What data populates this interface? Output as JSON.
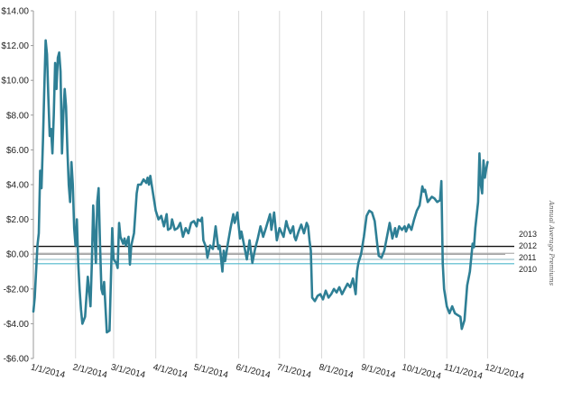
{
  "chart_data": {
    "type": "line",
    "title": "",
    "xlabel": "",
    "ylabel": "",
    "ylim": [
      -6,
      14
    ],
    "yticks": [
      14,
      12,
      10,
      8,
      6,
      4,
      2,
      0,
      -2,
      -4,
      -6
    ],
    "ytick_labels": [
      "$14.00",
      "$12.00",
      "$10.00",
      "$8.00",
      "$6.00",
      "$4.00",
      "$2.00",
      "$0.00",
      "-$2.00",
      "-$4.00",
      "-$6.00"
    ],
    "x_tick_labels": [
      "1/1/2014",
      "2/1/2014",
      "3/1/2014",
      "4/1/2014",
      "5/1/2014",
      "6/1/2014",
      "7/1/2014",
      "8/1/2014",
      "9/1/2014",
      "10/1/2014",
      "11/1/2014",
      "12/1/2014"
    ],
    "grid": "vertical",
    "series": [
      {
        "name": "",
        "color": "#2e7f95",
        "points": [
          [
            "2014-01-01",
            -3.3
          ],
          [
            "2014-01-02",
            -2.5
          ],
          [
            "2014-01-04",
            0.5
          ],
          [
            "2014-01-05",
            1.2
          ],
          [
            "2014-01-06",
            4.8
          ],
          [
            "2014-01-07",
            3.8
          ],
          [
            "2014-01-08",
            6.5
          ],
          [
            "2014-01-09",
            9.5
          ],
          [
            "2014-01-10",
            12.3
          ],
          [
            "2014-01-11",
            11.5
          ],
          [
            "2014-01-12",
            9.0
          ],
          [
            "2014-01-13",
            6.8
          ],
          [
            "2014-01-14",
            7.2
          ],
          [
            "2014-01-15",
            5.8
          ],
          [
            "2014-01-16",
            8.0
          ],
          [
            "2014-01-17",
            11.0
          ],
          [
            "2014-01-18",
            9.5
          ],
          [
            "2014-01-19",
            11.3
          ],
          [
            "2014-01-20",
            11.6
          ],
          [
            "2014-01-21",
            10.5
          ],
          [
            "2014-01-22",
            5.8
          ],
          [
            "2014-01-23",
            8.0
          ],
          [
            "2014-01-24",
            9.5
          ],
          [
            "2014-01-25",
            8.5
          ],
          [
            "2014-01-26",
            6.0
          ],
          [
            "2014-01-27",
            4.0
          ],
          [
            "2014-01-28",
            3.0
          ],
          [
            "2014-01-29",
            5.3
          ],
          [
            "2014-01-30",
            4.0
          ],
          [
            "2014-01-31",
            1.5
          ],
          [
            "2014-02-01",
            0.5
          ],
          [
            "2014-02-02",
            2.0
          ],
          [
            "2014-02-03",
            -0.5
          ],
          [
            "2014-02-04",
            -2.0
          ],
          [
            "2014-02-05",
            -3.2
          ],
          [
            "2014-02-06",
            -4.0
          ],
          [
            "2014-02-08",
            -3.6
          ],
          [
            "2014-02-10",
            -1.3
          ],
          [
            "2014-02-12",
            -3.0
          ],
          [
            "2014-02-13",
            -0.5
          ],
          [
            "2014-02-14",
            2.8
          ],
          [
            "2014-02-15",
            1.0
          ],
          [
            "2014-02-16",
            -0.5
          ],
          [
            "2014-02-17",
            3.0
          ],
          [
            "2014-02-18",
            3.8
          ],
          [
            "2014-02-19",
            0.5
          ],
          [
            "2014-02-20",
            -2.0
          ],
          [
            "2014-02-21",
            -2.3
          ],
          [
            "2014-02-22",
            -1.6
          ],
          [
            "2014-02-24",
            -4.5
          ],
          [
            "2014-02-26",
            -4.4
          ],
          [
            "2014-02-27",
            -1.5
          ],
          [
            "2014-02-28",
            1.5
          ],
          [
            "2014-03-01",
            -0.3
          ],
          [
            "2014-03-03",
            -0.5
          ],
          [
            "2014-03-04",
            -0.8
          ],
          [
            "2014-03-05",
            1.8
          ],
          [
            "2014-03-06",
            1.0
          ],
          [
            "2014-03-08",
            0.6
          ],
          [
            "2014-03-09",
            0.9
          ],
          [
            "2014-03-10",
            0.5
          ],
          [
            "2014-03-12",
            1.0
          ],
          [
            "2014-03-13",
            -0.6
          ],
          [
            "2014-03-14",
            0.5
          ],
          [
            "2014-03-16",
            1.2
          ],
          [
            "2014-03-18",
            3.5
          ],
          [
            "2014-03-19",
            4.0
          ],
          [
            "2014-03-21",
            4.0
          ],
          [
            "2014-03-23",
            4.3
          ],
          [
            "2014-03-25",
            4.1
          ],
          [
            "2014-03-26",
            4.4
          ],
          [
            "2014-03-27",
            4.0
          ],
          [
            "2014-03-28",
            4.5
          ],
          [
            "2014-03-30",
            3.5
          ],
          [
            "2014-04-01",
            2.5
          ],
          [
            "2014-04-03",
            2.0
          ],
          [
            "2014-04-05",
            2.2
          ],
          [
            "2014-04-07",
            1.6
          ],
          [
            "2014-04-09",
            2.3
          ],
          [
            "2014-04-10",
            1.4
          ],
          [
            "2014-04-12",
            1.5
          ],
          [
            "2014-04-13",
            2.0
          ],
          [
            "2014-04-15",
            1.4
          ],
          [
            "2014-04-17",
            1.5
          ],
          [
            "2014-04-19",
            1.8
          ],
          [
            "2014-04-21",
            1.0
          ],
          [
            "2014-04-23",
            1.5
          ],
          [
            "2014-04-25",
            1.2
          ],
          [
            "2014-04-27",
            1.8
          ],
          [
            "2014-04-29",
            1.9
          ],
          [
            "2014-05-01",
            1.6
          ],
          [
            "2014-05-02",
            2.0
          ],
          [
            "2014-05-04",
            1.9
          ],
          [
            "2014-05-05",
            2.1
          ],
          [
            "2014-05-06",
            0.8
          ],
          [
            "2014-05-08",
            0.4
          ],
          [
            "2014-05-09",
            -0.2
          ],
          [
            "2014-05-11",
            0.5
          ],
          [
            "2014-05-13",
            0.3
          ],
          [
            "2014-05-15",
            1.6
          ],
          [
            "2014-05-17",
            0.3
          ],
          [
            "2014-05-18",
            0.5
          ],
          [
            "2014-05-20",
            -1.0
          ],
          [
            "2014-05-21",
            0.2
          ],
          [
            "2014-05-22",
            -0.4
          ],
          [
            "2014-05-24",
            0.6
          ],
          [
            "2014-05-26",
            1.5
          ],
          [
            "2014-05-28",
            2.3
          ],
          [
            "2014-05-29",
            1.8
          ],
          [
            "2014-05-31",
            2.4
          ],
          [
            "2014-06-01",
            1.6
          ],
          [
            "2014-06-02",
            0.9
          ],
          [
            "2014-06-03",
            1.3
          ],
          [
            "2014-06-05",
            0.5
          ],
          [
            "2014-06-07",
            -0.3
          ],
          [
            "2014-06-09",
            0.8
          ],
          [
            "2014-06-11",
            -0.5
          ],
          [
            "2014-06-13",
            0.3
          ],
          [
            "2014-06-15",
            0.9
          ],
          [
            "2014-06-17",
            1.6
          ],
          [
            "2014-06-19",
            1.0
          ],
          [
            "2014-06-21",
            1.5
          ],
          [
            "2014-06-24",
            2.3
          ],
          [
            "2014-06-25",
            1.4
          ],
          [
            "2014-06-27",
            2.4
          ],
          [
            "2014-06-29",
            0.8
          ],
          [
            "2014-07-01",
            1.5
          ],
          [
            "2014-07-04",
            1.0
          ],
          [
            "2014-07-06",
            1.9
          ],
          [
            "2014-07-07",
            1.6
          ],
          [
            "2014-07-09",
            1.2
          ],
          [
            "2014-07-11",
            1.6
          ],
          [
            "2014-07-12",
            1.0
          ],
          [
            "2014-07-13",
            0.8
          ],
          [
            "2014-07-15",
            1.3
          ],
          [
            "2014-07-17",
            1.7
          ],
          [
            "2014-07-19",
            1.2
          ],
          [
            "2014-07-21",
            1.8
          ],
          [
            "2014-07-22",
            1.6
          ],
          [
            "2014-07-23",
            0.8
          ],
          [
            "2014-07-24",
            0.2
          ],
          [
            "2014-07-25",
            -2.5
          ],
          [
            "2014-07-27",
            -2.7
          ],
          [
            "2014-07-29",
            -2.4
          ],
          [
            "2014-07-31",
            -2.3
          ],
          [
            "2014-08-02",
            -2.6
          ],
          [
            "2014-08-04",
            -2.1
          ],
          [
            "2014-08-06",
            -2.5
          ],
          [
            "2014-08-08",
            -2.3
          ],
          [
            "2014-08-10",
            -2.0
          ],
          [
            "2014-08-12",
            -2.2
          ],
          [
            "2014-08-14",
            -1.9
          ],
          [
            "2014-08-16",
            -2.3
          ],
          [
            "2014-08-18",
            -2.0
          ],
          [
            "2014-08-20",
            -1.7
          ],
          [
            "2014-08-22",
            -1.9
          ],
          [
            "2014-08-24",
            -1.4
          ],
          [
            "2014-08-26",
            -2.3
          ],
          [
            "2014-08-27",
            -1.0
          ],
          [
            "2014-08-28",
            -0.5
          ],
          [
            "2014-08-30",
            0.0
          ],
          [
            "2014-09-01",
            1.0
          ],
          [
            "2014-09-03",
            2.2
          ],
          [
            "2014-09-05",
            2.5
          ],
          [
            "2014-09-07",
            2.4
          ],
          [
            "2014-09-09",
            1.9
          ],
          [
            "2014-09-11",
            0.5
          ],
          [
            "2014-09-12",
            -0.1
          ],
          [
            "2014-09-14",
            -0.2
          ],
          [
            "2014-09-16",
            0.2
          ],
          [
            "2014-09-17",
            0.6
          ],
          [
            "2014-09-18",
            1.0
          ],
          [
            "2014-09-20",
            1.8
          ],
          [
            "2014-09-22",
            0.9
          ],
          [
            "2014-09-24",
            1.5
          ],
          [
            "2014-09-25",
            1.0
          ],
          [
            "2014-09-27",
            1.6
          ],
          [
            "2014-09-29",
            1.4
          ],
          [
            "2014-10-01",
            1.6
          ],
          [
            "2014-10-02",
            1.3
          ],
          [
            "2014-10-04",
            1.7
          ],
          [
            "2014-10-06",
            1.4
          ],
          [
            "2014-10-08",
            2.0
          ],
          [
            "2014-10-10",
            2.5
          ],
          [
            "2014-10-12",
            2.8
          ],
          [
            "2014-10-14",
            3.9
          ],
          [
            "2014-10-15",
            3.6
          ],
          [
            "2014-10-16",
            3.7
          ],
          [
            "2014-10-18",
            3.0
          ],
          [
            "2014-10-19",
            3.1
          ],
          [
            "2014-10-21",
            3.3
          ],
          [
            "2014-10-23",
            3.2
          ],
          [
            "2014-10-25",
            3.0
          ],
          [
            "2014-10-27",
            3.1
          ],
          [
            "2014-10-28",
            4.2
          ],
          [
            "2014-10-29",
            -0.5
          ],
          [
            "2014-10-30",
            -2.0
          ],
          [
            "2014-10-31",
            -2.5
          ],
          [
            "2014-11-01",
            -3.0
          ],
          [
            "2014-11-03",
            -3.4
          ],
          [
            "2014-11-05",
            -3.0
          ],
          [
            "2014-11-07",
            -3.4
          ],
          [
            "2014-11-09",
            -3.5
          ],
          [
            "2014-11-11",
            -3.6
          ],
          [
            "2014-11-12",
            -4.3
          ],
          [
            "2014-11-14",
            -3.8
          ],
          [
            "2014-11-16",
            -1.8
          ],
          [
            "2014-11-18",
            -1.0
          ],
          [
            "2014-11-20",
            0.6
          ],
          [
            "2014-11-21",
            0.4
          ],
          [
            "2014-11-22",
            1.5
          ],
          [
            "2014-11-24",
            3.0
          ],
          [
            "2014-11-25",
            5.8
          ],
          [
            "2014-11-26",
            4.0
          ],
          [
            "2014-11-27",
            3.5
          ],
          [
            "2014-11-28",
            5.4
          ],
          [
            "2014-11-29",
            4.4
          ],
          [
            "2014-11-30",
            4.9
          ],
          [
            "2014-12-01",
            5.3
          ]
        ]
      }
    ],
    "reference_lines": [
      {
        "label": "2013",
        "value": 0.45,
        "color": "#111111"
      },
      {
        "label": "2012",
        "value": 0.05,
        "color": "#b0b0b0"
      },
      {
        "label": "2011",
        "value": -0.3,
        "color": "#9ec3cc"
      },
      {
        "label": "2010",
        "value": -0.55,
        "color": "#4fb8cc"
      }
    ],
    "side_note": "Annual Average Premiums"
  }
}
